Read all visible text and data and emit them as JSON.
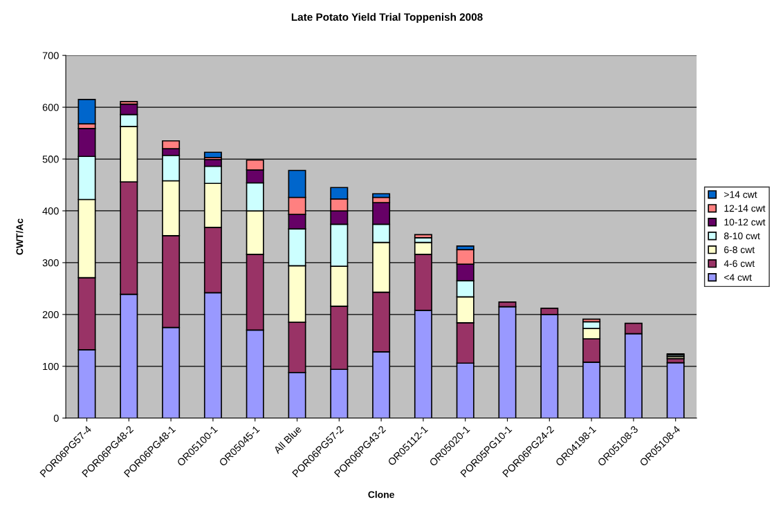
{
  "chart_data": {
    "type": "bar",
    "title": "Late Potato Yield Trial Toppenish 2008",
    "xlabel": "Clone",
    "ylabel": "CWT/Ac",
    "categories": [
      "POR06PG57-4",
      "POR06PG48-2",
      "POR06PG48-1",
      "OR05100-1",
      "OR05045-1",
      "All Blue",
      "POR06PG57-2",
      "POR06PG43-2",
      "OR05112-1",
      "OR05020-1",
      "POR05PG10-1",
      "POR06PG24-2",
      "OR04198-1",
      "OR05108-3",
      "OR05108-4"
    ],
    "stacked": true,
    "ylim": [
      0,
      700
    ],
    "yticks": [
      0,
      100,
      200,
      300,
      400,
      500,
      600,
      700
    ],
    "grid": "y",
    "legend": "right",
    "series": [
      {
        "name": "<4 cwt",
        "color": "#9999ff",
        "values": [
          132,
          239,
          175,
          242,
          170,
          88,
          94,
          128,
          208,
          106,
          215,
          200,
          108,
          163,
          107
        ]
      },
      {
        "name": "4-6 cwt",
        "color": "#993366",
        "values": [
          139,
          217,
          177,
          126,
          146,
          97,
          122,
          115,
          108,
          78,
          9,
          12,
          45,
          20,
          8
        ]
      },
      {
        "name": "6-8 cwt",
        "color": "#ffffcc",
        "values": [
          151,
          107,
          106,
          85,
          84,
          109,
          77,
          96,
          23,
          50,
          null,
          null,
          20,
          null,
          4
        ]
      },
      {
        "name": "8-10 cwt",
        "color": "#ccffff",
        "values": [
          83,
          23,
          49,
          33,
          54,
          71,
          81,
          35,
          9,
          31,
          null,
          null,
          13,
          null,
          3
        ]
      },
      {
        "name": "10-12 cwt",
        "color": "#660066",
        "values": [
          54,
          20,
          13,
          13,
          25,
          28,
          26,
          42,
          null,
          32,
          null,
          null,
          null,
          null,
          null
        ]
      },
      {
        "name": "12-14 cwt",
        "color": "#ff8080",
        "values": [
          9,
          5,
          15,
          4,
          19,
          33,
          23,
          10,
          6,
          28,
          null,
          null,
          5,
          null,
          2
        ]
      },
      {
        "name": ">14 cwt",
        "color": "#0066cc",
        "values": [
          47,
          null,
          null,
          10,
          null,
          52,
          22,
          7,
          null,
          7,
          null,
          null,
          null,
          null,
          null
        ]
      }
    ]
  }
}
